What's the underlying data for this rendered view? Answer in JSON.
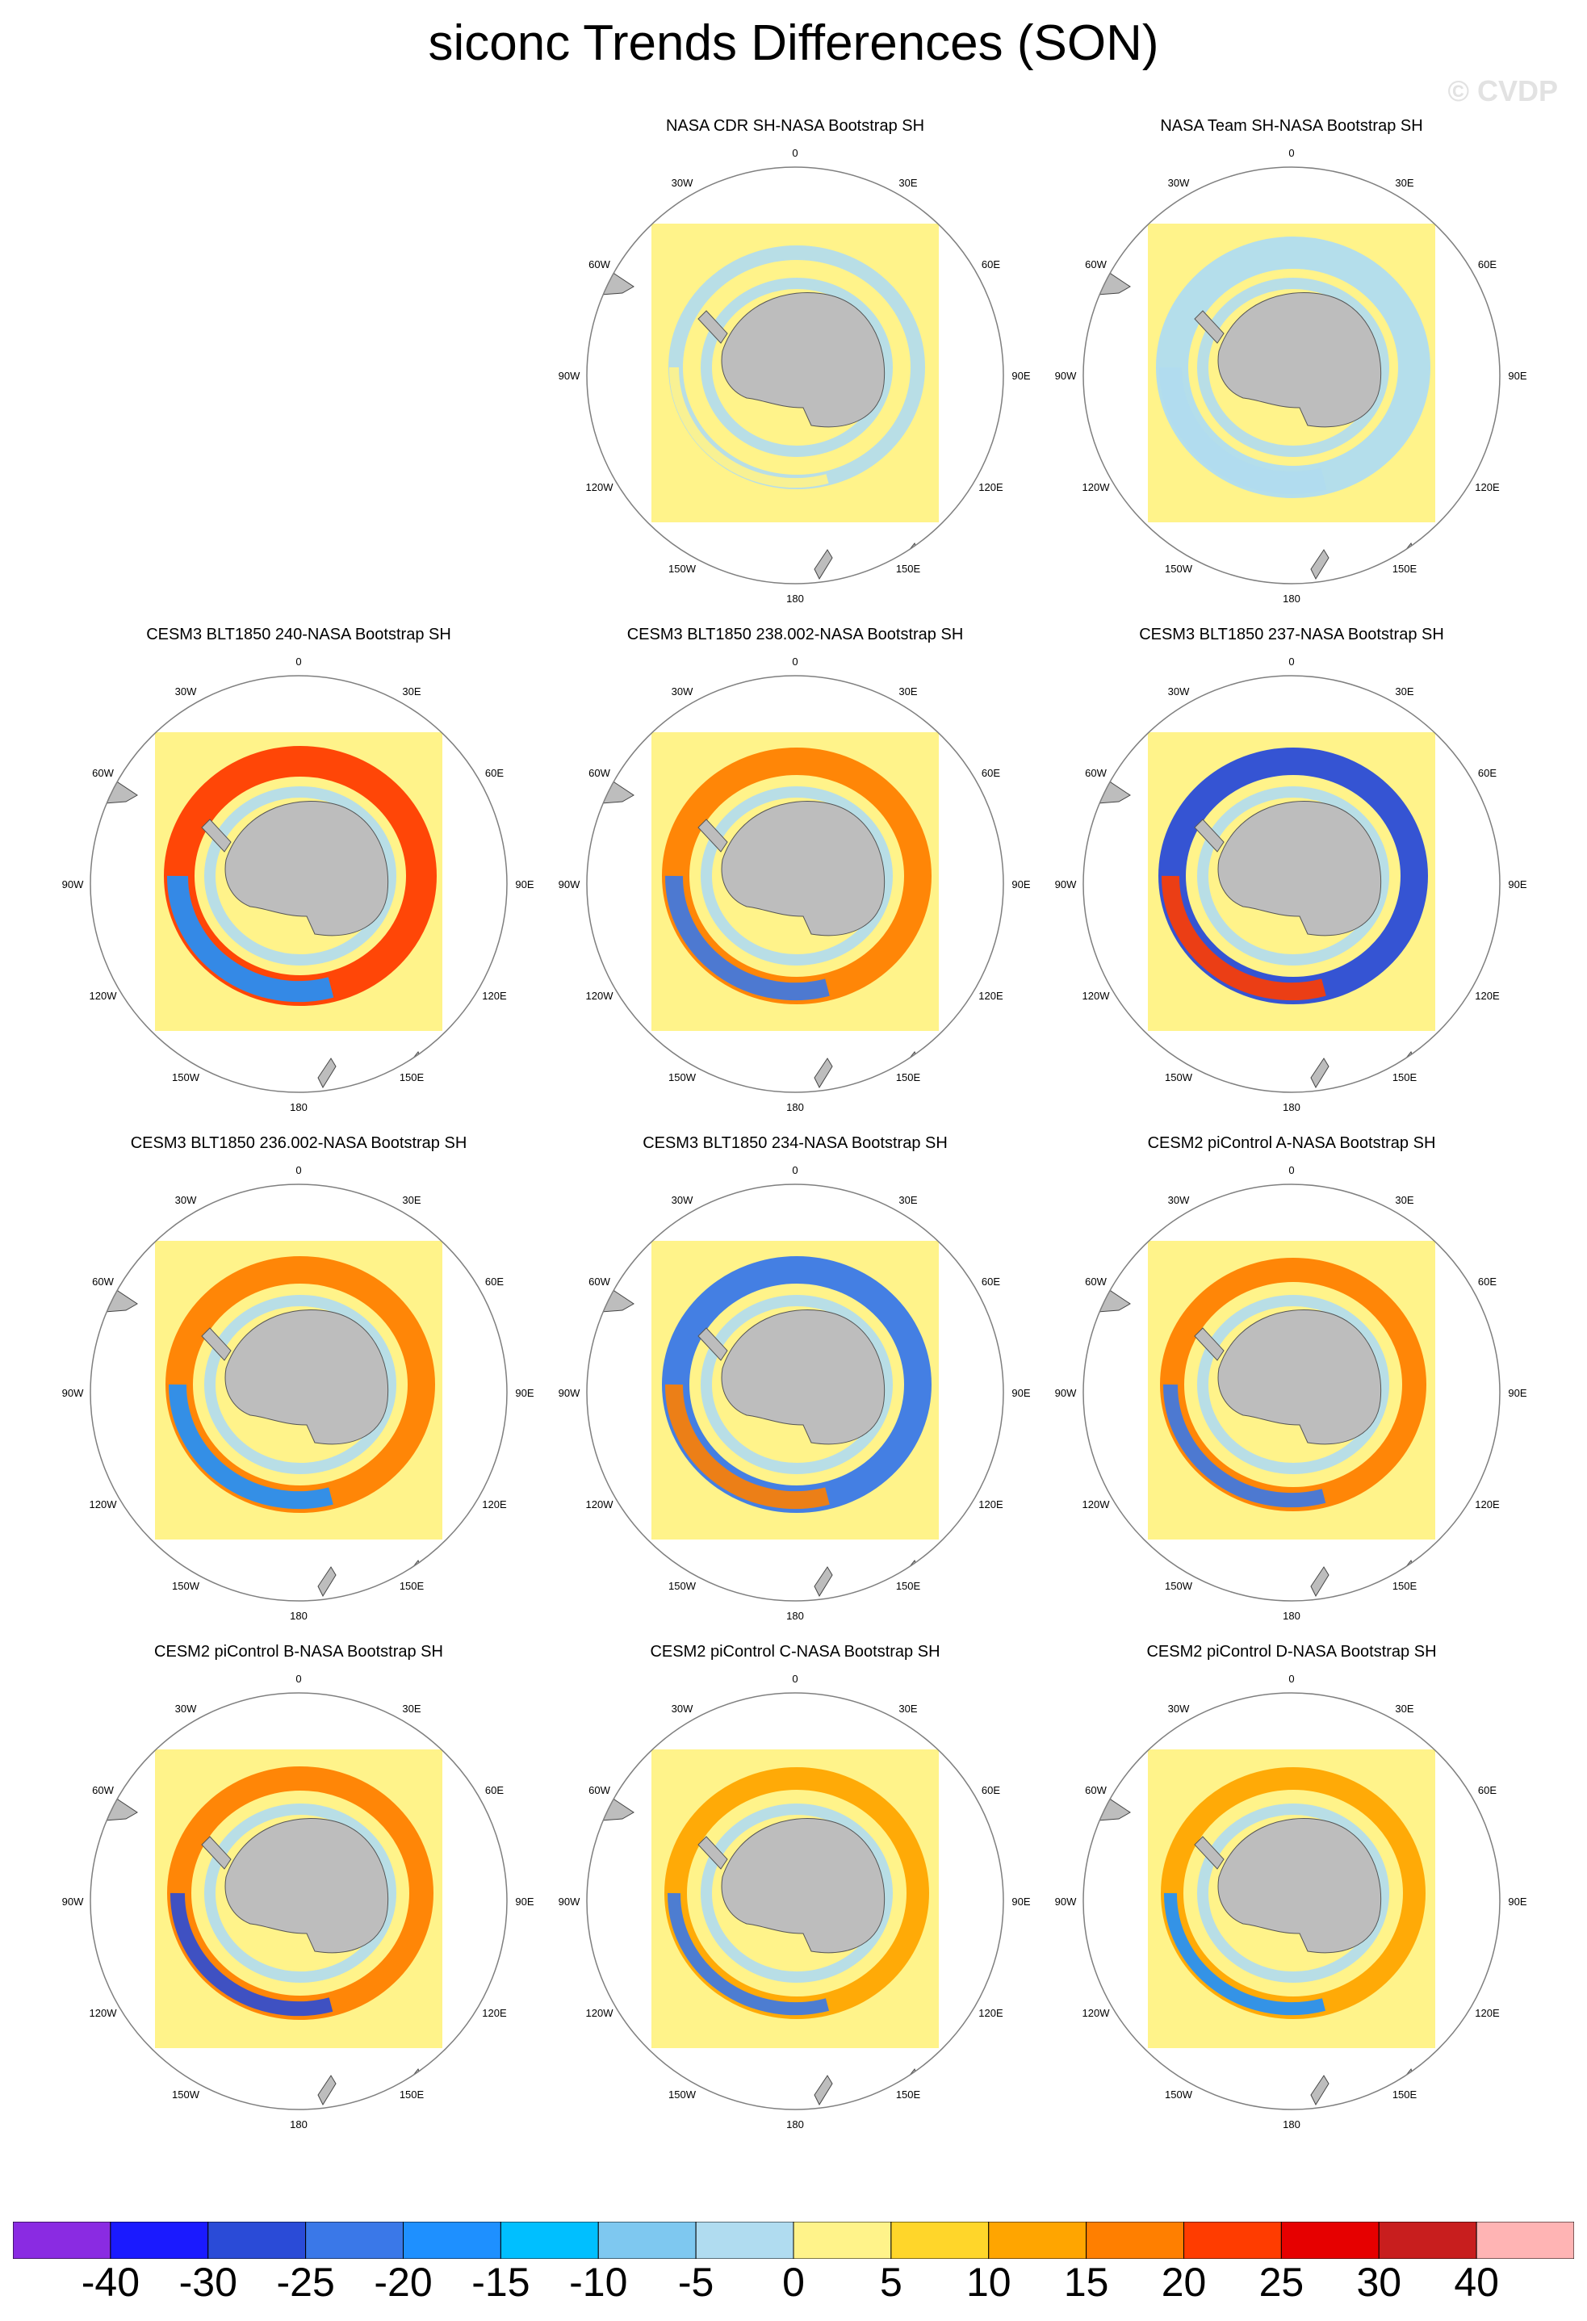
{
  "title": "siconc Trends Differences (SON)",
  "watermark": "© CVDP",
  "longitude_labels": [
    "0",
    "30E",
    "60E",
    "90E",
    "120E",
    "150E",
    "180",
    "150W",
    "120W",
    "90W",
    "60W",
    "30W"
  ],
  "colors": {
    "land": "#bdbdbd",
    "ocean_background": "#fff38a",
    "map_border": "#7f7f7f"
  },
  "panels": [
    {
      "title": "NASA CDR SH-NASA Bootstrap SH",
      "position": "row1-col2"
    },
    {
      "title": "NASA Team SH-NASA Bootstrap SH",
      "position": "row1-col3"
    },
    {
      "title": "CESM3 BLT1850 240-NASA Bootstrap SH",
      "position": "row2-col1"
    },
    {
      "title": "CESM3 BLT1850 238.002-NASA Bootstrap SH",
      "position": "row2-col2"
    },
    {
      "title": "CESM3 BLT1850 237-NASA Bootstrap SH",
      "position": "row2-col3"
    },
    {
      "title": "CESM3 BLT1850 236.002-NASA Bootstrap SH",
      "position": "row3-col1"
    },
    {
      "title": "CESM3 BLT1850 234-NASA Bootstrap SH",
      "position": "row3-col2"
    },
    {
      "title": "CESM2 piControl A-NASA Bootstrap SH",
      "position": "row3-col3"
    },
    {
      "title": "CESM2 piControl B-NASA Bootstrap SH",
      "position": "row4-col1"
    },
    {
      "title": "CESM2 piControl C-NASA Bootstrap SH",
      "position": "row4-col2"
    },
    {
      "title": "CESM2 piControl D-NASA Bootstrap SH",
      "position": "row4-col3"
    }
  ],
  "colorbar": {
    "colors": [
      "#8a2be2",
      "#1a1aff",
      "#2a4bd7",
      "#3a78e8",
      "#1e90ff",
      "#00bfff",
      "#7ec8f0",
      "#b0dcf0",
      "#fff38a",
      "#ffd62a",
      "#ffa500",
      "#ff7f00",
      "#ff3c00",
      "#e60000",
      "#c81e1e",
      "#ffb4b4"
    ],
    "labels": [
      "-40",
      "-30",
      "-25",
      "-20",
      "-15",
      "-10",
      "-5",
      "0",
      "5",
      "10",
      "15",
      "20",
      "25",
      "30",
      "40"
    ]
  }
}
